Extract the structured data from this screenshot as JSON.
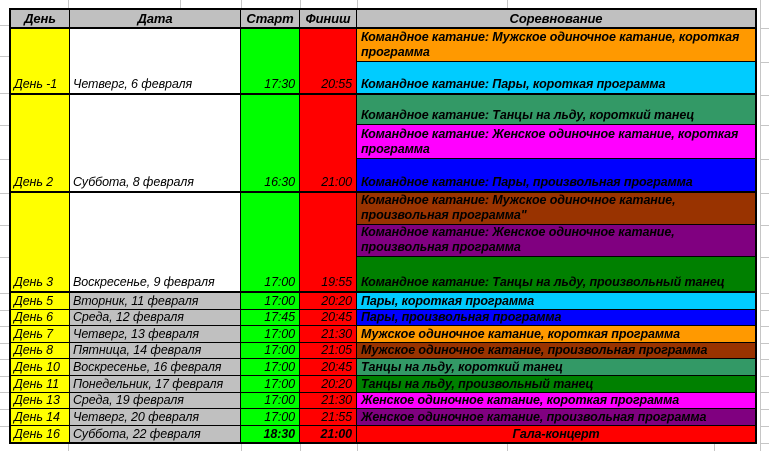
{
  "palette": {
    "day-col": "#FFFF00",
    "start-col": "#00FF00",
    "finish-col": "#FF0000",
    "header-bg": "#C0C0C0",
    "date-gray": "#C0C0C0",
    "date-white": "#FFFFFF",
    "grid": "#C6C6C6",
    "border": "#000000"
  },
  "header": {
    "day": "День",
    "date": "Дата",
    "start": "Старт",
    "finish": "Финиш",
    "competition": "Соревнование"
  },
  "blocks": [
    {
      "day": "День -1",
      "date": "Четверг, 6 февраля",
      "start": "17:30",
      "finish": "20:55",
      "events": [
        {
          "label": "Командное катание: Мужское одиночное катание, короткая программа",
          "color": "#FF9900"
        },
        {
          "label": "Командное катание: Пары, короткая программа",
          "color": "#00CCFF"
        }
      ]
    },
    {
      "day": "День 2",
      "date": "Суббота, 8 февраля",
      "start": "16:30",
      "finish": "21:00",
      "events": [
        {
          "label": "Командное катание: Танцы на льду, короткий танец",
          "color": "#339966"
        },
        {
          "label": "Командное катание: Женское одиночное катание, короткая программа",
          "color": "#FF00FF"
        },
        {
          "label": "Командное катание: Пары, произвольная программа",
          "color": "#0000FF"
        }
      ]
    },
    {
      "day": "День 3",
      "date": "Воскресенье, 9 февраля",
      "start": "17:00",
      "finish": "19:55",
      "events": [
        {
          "label": "Командное катание: Мужское одиночное катание, произвольная программа\"",
          "color": "#993300"
        },
        {
          "label": "Командное катание: Женское одиночное катание, произвольная программа",
          "color": "#800080"
        },
        {
          "label": "Командное катание: Танцы на льду, произвольный танец",
          "color": "#008000"
        }
      ]
    }
  ],
  "rows": [
    {
      "day": "День 5",
      "date": "Вторник, 11 февраля",
      "start": "17:00",
      "finish": "20:20",
      "event": "Пары, короткая программа",
      "color": "#00CCFF"
    },
    {
      "day": "День 6",
      "date": "Среда, 12 февраля",
      "start": "17:45",
      "finish": "20:45",
      "event": "Пары, произвольная программа",
      "color": "#0000FF"
    },
    {
      "day": "День 7",
      "date": "Четверг, 13 февраля",
      "start": "17:00",
      "finish": "21:30",
      "event": "Мужское одиночное катание, короткая программа",
      "color": "#FF9900"
    },
    {
      "day": "День 8",
      "date": "Пятница, 14 февраля",
      "start": "17:00",
      "finish": "21:05",
      "event": "Мужское одиночное катание, произвольная программа",
      "color": "#993300"
    },
    {
      "day": "День 10",
      "date": "Воскресенье, 16 февраля",
      "start": "17:00",
      "finish": "20:45",
      "event": "Танцы на льду, короткий танец",
      "color": "#339966"
    },
    {
      "day": "День 11",
      "date": "Понедельник, 17 февраля",
      "start": "17:00",
      "finish": "20:20",
      "event": "Танцы на льду, произвольный танец",
      "color": "#008000"
    },
    {
      "day": "День 13",
      "date": "Среда, 19 февраля",
      "start": "17:00",
      "finish": "21:30",
      "event": "Женское одиночное катание, короткая программа",
      "color": "#FF00FF"
    },
    {
      "day": "День 14",
      "date": "Четверг, 20 февраля",
      "start": "17:00",
      "finish": "21:55",
      "event": "Женское одиночное катание, произвольная программа",
      "color": "#800080"
    },
    {
      "day": "День 16",
      "date": "Суббота, 22 февраля",
      "start": "18:30",
      "finish": "21:00",
      "event": "Гала-концерт",
      "color": "#FF0000"
    }
  ]
}
